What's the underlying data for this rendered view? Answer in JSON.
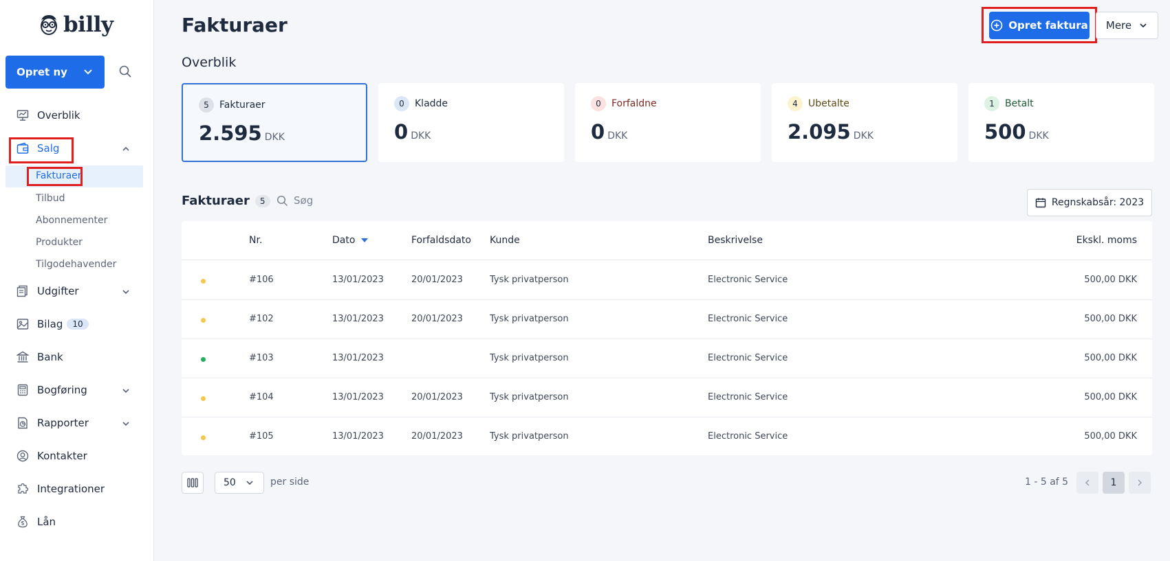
{
  "sidebar": {
    "logo_text": "billy",
    "create_button": "Opret ny",
    "nav": {
      "overblik": "Overblik",
      "salg": "Salg",
      "udgifter": "Udgifter",
      "bilag": "Bilag",
      "bilag_badge": "10",
      "bank": "Bank",
      "bogforing": "Bogføring",
      "rapporter": "Rapporter",
      "kontakter": "Kontakter",
      "integrationer": "Integrationer",
      "laan": "Lån"
    },
    "salg_sub": {
      "fakturaer": "Fakturaer",
      "tilbud": "Tilbud",
      "abonnementer": "Abonnementer",
      "produkter": "Produkter",
      "tilgodehavender": "Tilgodehavender"
    }
  },
  "header": {
    "title": "Fakturaer",
    "create_invoice_button": "Opret faktura",
    "more_button": "Mere"
  },
  "overview": {
    "title": "Overblik",
    "cards": [
      {
        "label": "Fakturaer",
        "count": "5",
        "value": "2.595",
        "currency": "DKK"
      },
      {
        "label": "Kladde",
        "count": "0",
        "value": "0",
        "currency": "DKK"
      },
      {
        "label": "Forfaldne",
        "count": "0",
        "value": "0",
        "currency": "DKK"
      },
      {
        "label": "Ubetalte",
        "count": "4",
        "value": "2.095",
        "currency": "DKK"
      },
      {
        "label": "Betalt",
        "count": "1",
        "value": "500",
        "currency": "DKK"
      }
    ]
  },
  "list": {
    "title": "Fakturaer",
    "count": "5",
    "search_placeholder": "Søg",
    "year_filter": "Regnskabsår: 2023",
    "columns": {
      "nr": "Nr.",
      "dato": "Dato",
      "forfaldsdato": "Forfaldsdato",
      "kunde": "Kunde",
      "beskrivelse": "Beskrivelse",
      "amount": "Ekskl. moms"
    },
    "rows": [
      {
        "status": "unpaid",
        "nr": "#106",
        "dato": "13/01/2023",
        "forfald": "20/01/2023",
        "kunde": "Tysk privatperson",
        "beskrivelse": "Electronic Service",
        "amount": "500,00 DKK"
      },
      {
        "status": "unpaid",
        "nr": "#102",
        "dato": "13/01/2023",
        "forfald": "20/01/2023",
        "kunde": "Tysk privatperson",
        "beskrivelse": "Electronic Service",
        "amount": "500,00 DKK"
      },
      {
        "status": "paid",
        "nr": "#103",
        "dato": "13/01/2023",
        "forfald": "",
        "kunde": "Tysk privatperson",
        "beskrivelse": "Electronic Service",
        "amount": "500,00 DKK"
      },
      {
        "status": "unpaid",
        "nr": "#104",
        "dato": "13/01/2023",
        "forfald": "20/01/2023",
        "kunde": "Tysk privatperson",
        "beskrivelse": "Electronic Service",
        "amount": "500,00 DKK"
      },
      {
        "status": "unpaid",
        "nr": "#105",
        "dato": "13/01/2023",
        "forfald": "20/01/2023",
        "kunde": "Tysk privatperson",
        "beskrivelse": "Electronic Service",
        "amount": "500,00 DKK"
      }
    ]
  },
  "pagination": {
    "per_page_value": "50",
    "per_page_label": "per side",
    "range": "1 - 5 af 5",
    "current_page": "1"
  },
  "colors": {
    "accent": "#1e6ce8",
    "status_unpaid": "#f2c94c",
    "status_paid": "#27ae60",
    "highlight_box": "#e01e1e"
  }
}
